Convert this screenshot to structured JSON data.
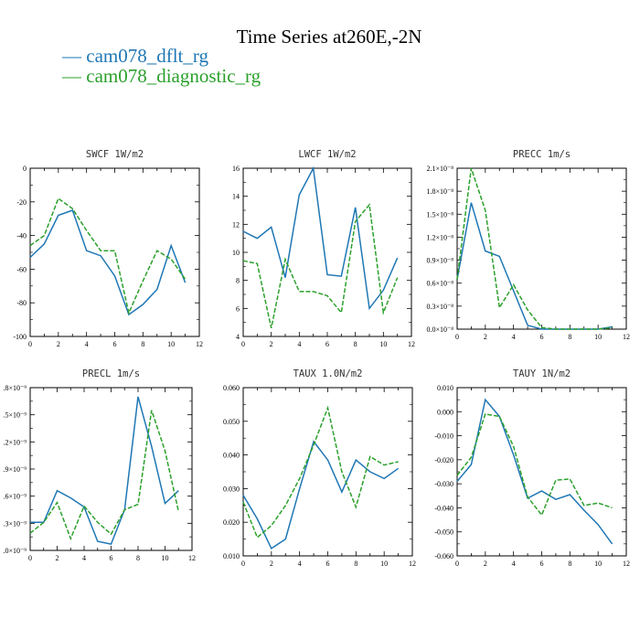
{
  "title": "Time Series at260E,-2N",
  "legend": [
    {
      "label": "cam078_dflt_rg",
      "color": "#1f77b4",
      "dash": "solid"
    },
    {
      "label": "cam078_diagnostic_rg",
      "color": "#2ca02c",
      "dash": "dashed"
    }
  ],
  "chart_data": [
    {
      "type": "line",
      "title": "SWCF   1W/m2",
      "x": [
        0,
        1,
        2,
        3,
        4,
        5,
        6,
        7,
        8,
        9,
        10,
        11
      ],
      "xlim": [
        0,
        12
      ],
      "xticks": [
        "0",
        "2",
        "4",
        "6",
        "8",
        "10",
        "12"
      ],
      "ylim": [
        -100,
        0
      ],
      "yticks": [
        "-100",
        "-80",
        "-60",
        "-40",
        "-20",
        "0"
      ],
      "series": [
        {
          "name": "cam078_dflt_rg",
          "values": [
            -53,
            -45,
            -28,
            -25,
            -49,
            -52,
            -64,
            -87,
            -81,
            -72,
            -46,
            -68
          ]
        },
        {
          "name": "cam078_diagnostic_rg",
          "values": [
            -46,
            -40,
            -18,
            -24,
            -37,
            -49,
            -49,
            -86,
            -67,
            -49,
            -54,
            -66
          ]
        }
      ]
    },
    {
      "type": "line",
      "title": "LWCF   1W/m2",
      "x": [
        0,
        1,
        2,
        3,
        4,
        5,
        6,
        7,
        8,
        9,
        10,
        11
      ],
      "xlim": [
        0,
        12
      ],
      "xticks": [
        "0",
        "2",
        "4",
        "6",
        "8",
        "10",
        "12"
      ],
      "ylim": [
        4,
        16
      ],
      "yticks": [
        "4",
        "6",
        "8",
        "10",
        "12",
        "14",
        "16"
      ],
      "series": [
        {
          "name": "cam078_dflt_rg",
          "values": [
            11.5,
            11.0,
            11.8,
            8.2,
            14.1,
            16.0,
            8.4,
            8.3,
            13.2,
            6.0,
            7.3,
            9.6
          ]
        },
        {
          "name": "cam078_diagnostic_rg",
          "values": [
            9.4,
            9.2,
            4.6,
            9.5,
            7.2,
            7.2,
            6.9,
            5.7,
            12.2,
            13.4,
            5.7,
            8.2
          ]
        }
      ]
    },
    {
      "type": "line",
      "title": "PRECC   1m/s",
      "x": [
        0,
        1,
        2,
        3,
        4,
        5,
        6,
        7,
        8,
        9,
        10,
        11
      ],
      "xlim": [
        0,
        12
      ],
      "xticks": [
        "0",
        "2",
        "4",
        "6",
        "8",
        "10",
        "12"
      ],
      "ylim": [
        0,
        2.1e-08
      ],
      "yticks": [
        "0.0×10⁻⁸",
        "0.3×10⁻⁸",
        "0.6×10⁻⁸",
        "0.9×10⁻⁸",
        "1.2×10⁻⁸",
        "1.5×10⁻⁸",
        "1.8×10⁻⁸",
        "2.1×10⁻⁸"
      ],
      "series": [
        {
          "name": "cam078_dflt_rg",
          "values": [
            6.5e-09,
            1.65e-08,
            1.02e-08,
            9.5e-09,
            5e-09,
            5e-10,
            0,
            0,
            0,
            0,
            0,
            3e-10
          ]
        },
        {
          "name": "cam078_diagnostic_rg",
          "values": [
            6.5e-09,
            2.1e-08,
            1.55e-08,
            2.8e-09,
            5.8e-09,
            2.5e-09,
            2e-10,
            0,
            0,
            0,
            0,
            2e-10
          ]
        }
      ]
    },
    {
      "type": "line",
      "title": "PRECL   1m/s",
      "x": [
        0,
        1,
        2,
        3,
        4,
        5,
        6,
        7,
        8,
        9,
        10,
        11
      ],
      "xlim": [
        0,
        12
      ],
      "xticks": [
        "0",
        "2",
        "4",
        "6",
        "8",
        "10",
        "12"
      ],
      "ylim": [
        0,
        1.8e-09
      ],
      "yticks": [
        ".0×10⁻⁹",
        ".3×10⁻⁹",
        ".6×10⁻⁹",
        ".9×10⁻⁹",
        ".2×10⁻⁹",
        ".5×10⁻⁹",
        ".8×10⁻⁹"
      ],
      "series": [
        {
          "name": "cam078_dflt_rg",
          "values": [
            3.1e-10,
            3.1e-10,
            6.6e-10,
            5.8e-10,
            4.8e-10,
            1e-10,
            7e-11,
            4.5e-10,
            1.7e-09,
            1.15e-09,
            5.2e-10,
            6.6e-10
          ]
        },
        {
          "name": "cam078_diagnostic_rg",
          "values": [
            1.9e-10,
            3.1e-10,
            5.3e-10,
            1.3e-10,
            4.9e-10,
            3.1e-10,
            1.8e-10,
            4.5e-10,
            5.1e-10,
            1.55e-09,
            1.1e-09,
            4.3e-10
          ]
        }
      ]
    },
    {
      "type": "line",
      "title": "TAUX   1.0N/m2",
      "x": [
        0,
        1,
        2,
        3,
        4,
        5,
        6,
        7,
        8,
        9,
        10,
        11
      ],
      "xlim": [
        0,
        12
      ],
      "xticks": [
        "0",
        "2",
        "4",
        "6",
        "8",
        "10",
        "12"
      ],
      "ylim": [
        0.01,
        0.06
      ],
      "yticks": [
        "0.010",
        "0.020",
        "0.030",
        "0.040",
        "0.050",
        "0.060"
      ],
      "series": [
        {
          "name": "cam078_dflt_rg",
          "values": [
            0.028,
            0.021,
            0.0122,
            0.015,
            0.03,
            0.044,
            0.0385,
            0.029,
            0.0385,
            0.035,
            0.033,
            0.036
          ]
        },
        {
          "name": "cam078_diagnostic_rg",
          "values": [
            0.026,
            0.0155,
            0.019,
            0.025,
            0.033,
            0.043,
            0.054,
            0.035,
            0.0245,
            0.0395,
            0.037,
            0.038
          ]
        }
      ]
    },
    {
      "type": "line",
      "title": "TAUY   1N/m2",
      "x": [
        0,
        1,
        2,
        3,
        4,
        5,
        6,
        7,
        8,
        9,
        10,
        11
      ],
      "xlim": [
        0,
        12
      ],
      "xticks": [
        "0",
        "2",
        "4",
        "6",
        "8",
        "10",
        "12"
      ],
      "ylim": [
        -0.06,
        0.01
      ],
      "yticks": [
        "-0.060",
        "-0.050",
        "-0.040",
        "-0.030",
        "-0.020",
        "-0.010",
        "0.000",
        "0.010"
      ],
      "series": [
        {
          "name": "cam078_dflt_rg",
          "values": [
            -0.029,
            -0.022,
            0.005,
            -0.002,
            -0.018,
            -0.036,
            -0.033,
            -0.0365,
            -0.0345,
            -0.041,
            -0.047,
            -0.055
          ]
        },
        {
          "name": "cam078_diagnostic_rg",
          "values": [
            -0.0265,
            -0.019,
            -0.001,
            -0.002,
            -0.0145,
            -0.0355,
            -0.043,
            -0.0285,
            -0.028,
            -0.039,
            -0.038,
            -0.04
          ]
        }
      ]
    }
  ]
}
